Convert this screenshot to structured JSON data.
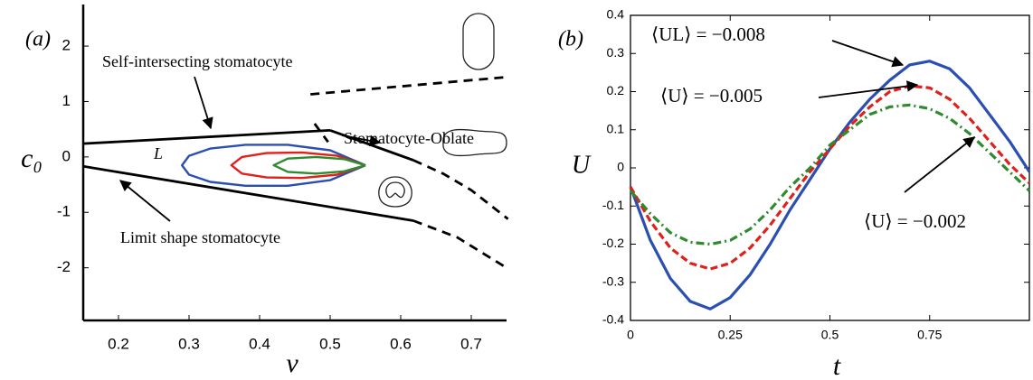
{
  "chart_data": [
    {
      "type": "line",
      "annotations": [
        "(a)",
        "Self-intersecting stomatocyte",
        "Stomatocyte-Oblate",
        "Limit shape stomatocyte",
        "L"
      ],
      "xlabel": "v",
      "ylabel": "c₀",
      "xlim": [
        0.15,
        0.75
      ],
      "ylim": [
        -2.95,
        2.75
      ],
      "xticks": [
        0.2,
        0.3,
        0.4,
        0.5,
        0.6,
        0.7
      ],
      "yticks": [
        -2,
        -1,
        0,
        1,
        2
      ],
      "series": [
        {
          "color": "#000000",
          "dash": false,
          "x": [
            0.15,
            0.5
          ],
          "values": [
            0.24,
            0.48
          ]
        },
        {
          "color": "#000000",
          "dash": false,
          "x": [
            0.5,
            0.618
          ],
          "values": [
            0.48,
            -0.06
          ]
        },
        {
          "color": "#000000",
          "dash": true,
          "x": [
            0.618,
            0.66,
            0.7,
            0.752
          ],
          "values": [
            -0.06,
            -0.3,
            -0.6,
            -1.12
          ]
        },
        {
          "color": "#000000",
          "dash": true,
          "x": [
            0.472,
            0.75
          ],
          "values": [
            1.13,
            1.44
          ]
        },
        {
          "color": "#000000",
          "dash": true,
          "x": [
            0.478,
            0.497
          ],
          "values": [
            0.6,
            0.27
          ]
        },
        {
          "color": "#000000",
          "dash": false,
          "x": [
            0.15,
            0.618
          ],
          "values": [
            -0.17,
            -1.15
          ]
        },
        {
          "color": "#000000",
          "dash": true,
          "x": [
            0.618,
            0.68,
            0.746
          ],
          "values": [
            -1.15,
            -1.45,
            -1.97
          ]
        },
        {
          "color": "#2a4fb0",
          "dash": false,
          "x": [
            0.55,
            0.5,
            0.44,
            0.38,
            0.33,
            0.3,
            0.29,
            0.3,
            0.33,
            0.38,
            0.44,
            0.5,
            0.55
          ],
          "values": [
            -0.15,
            0.12,
            0.22,
            0.22,
            0.15,
            0.02,
            -0.15,
            -0.32,
            -0.45,
            -0.52,
            -0.52,
            -0.42,
            -0.15
          ]
        },
        {
          "color": "#e0201b",
          "dash": false,
          "x": [
            0.55,
            0.51,
            0.46,
            0.41,
            0.375,
            0.36,
            0.375,
            0.41,
            0.46,
            0.51,
            0.55
          ],
          "values": [
            -0.15,
            0.02,
            0.08,
            0.07,
            0.0,
            -0.15,
            -0.3,
            -0.37,
            -0.38,
            -0.32,
            -0.15
          ]
        },
        {
          "color": "#2e8b2e",
          "dash": false,
          "x": [
            0.55,
            0.52,
            0.48,
            0.44,
            0.42,
            0.44,
            0.48,
            0.52,
            0.55
          ],
          "values": [
            -0.15,
            -0.04,
            0.0,
            -0.03,
            -0.15,
            -0.27,
            -0.3,
            -0.26,
            -0.15
          ]
        }
      ]
    },
    {
      "type": "line",
      "annotations": [
        "(b)",
        "⟨UL⟩ = −0.008",
        "⟨U⟩ = −0.005",
        "⟨U⟩ = −0.002"
      ],
      "xlabel": "t",
      "ylabel": "U",
      "xlim": [
        0,
        1
      ],
      "ylim": [
        -0.4,
        0.4
      ],
      "xticks": [
        0,
        0.25,
        0.5,
        0.75
      ],
      "yticks": [
        -0.4,
        -0.3,
        -0.2,
        -0.1,
        0,
        0.1,
        0.2,
        0.3,
        0.4
      ],
      "x": [
        0,
        0.05,
        0.1,
        0.15,
        0.2,
        0.25,
        0.3,
        0.35,
        0.4,
        0.45,
        0.5,
        0.55,
        0.6,
        0.65,
        0.7,
        0.75,
        0.8,
        0.85,
        0.9,
        0.95,
        1
      ],
      "series": [
        {
          "color": "#2a4fb0",
          "dash": false,
          "values": [
            -0.05,
            -0.19,
            -0.29,
            -0.35,
            -0.37,
            -0.34,
            -0.28,
            -0.2,
            -0.11,
            -0.03,
            0.05,
            0.12,
            0.18,
            0.23,
            0.27,
            0.28,
            0.26,
            0.21,
            0.14,
            0.07,
            -0.01
          ]
        },
        {
          "color": "#e0201b",
          "dash": true,
          "values": [
            -0.05,
            -0.14,
            -0.21,
            -0.25,
            -0.265,
            -0.25,
            -0.21,
            -0.15,
            -0.08,
            -0.01,
            0.05,
            0.11,
            0.16,
            0.2,
            0.215,
            0.21,
            0.18,
            0.13,
            0.07,
            0.01,
            -0.04
          ]
        },
        {
          "color": "#2e8b2e",
          "dash": true,
          "values": [
            -0.06,
            -0.12,
            -0.17,
            -0.195,
            -0.2,
            -0.19,
            -0.16,
            -0.11,
            -0.05,
            0.0,
            0.06,
            0.1,
            0.14,
            0.16,
            0.165,
            0.155,
            0.13,
            0.09,
            0.04,
            -0.01,
            -0.06
          ]
        }
      ]
    }
  ]
}
